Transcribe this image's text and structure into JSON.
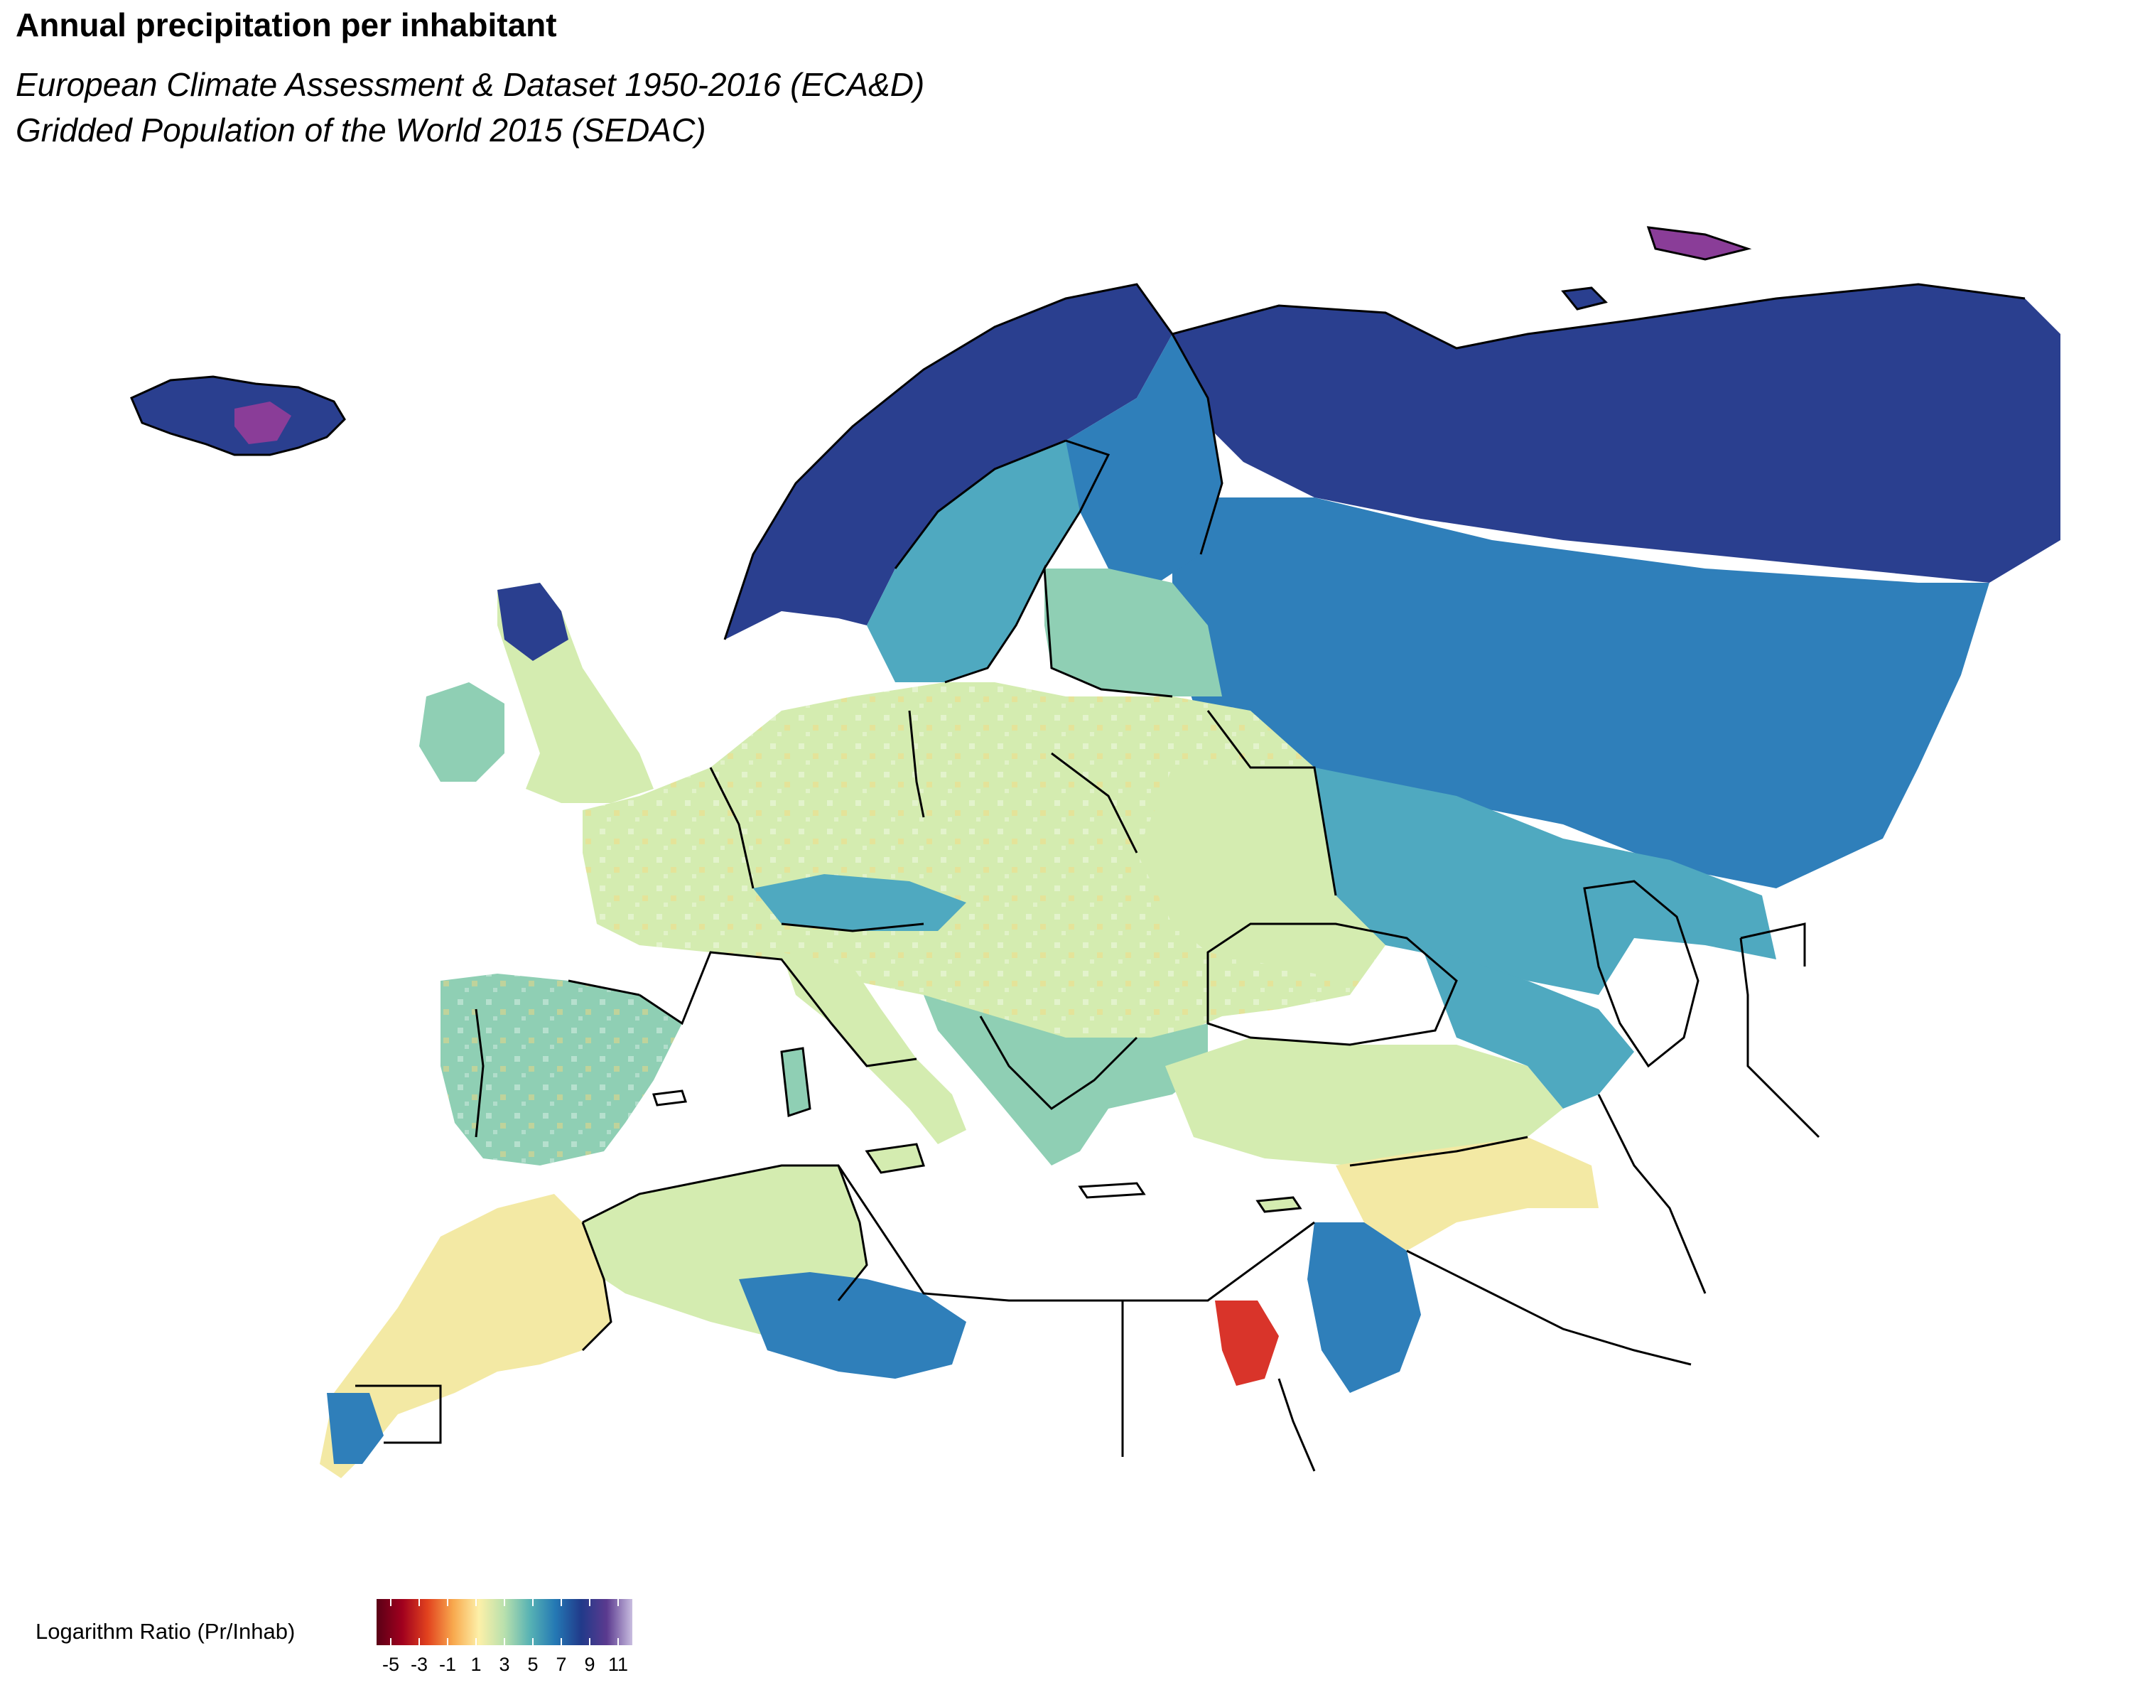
{
  "title": "Annual precipitation per inhabitant",
  "subtitle_lines": [
    "European Climate Assessment & Dataset 1950-2016 (ECA&D)",
    "Gridded Population of the World 2015 (SEDAC)"
  ],
  "legend": {
    "label": "Logarithm Ratio (Pr/Inhab)",
    "range": [
      -6,
      12
    ],
    "ticks": [
      -5,
      -3,
      -1,
      1,
      3,
      5,
      7,
      9,
      11
    ],
    "tick_labels": [
      "-5",
      "-3",
      "-1",
      "1",
      "3",
      "5",
      "7",
      "9",
      "11"
    ],
    "colors": [
      "#5a0016",
      "#a0001e",
      "#e2431e",
      "#f8a94e",
      "#fdf0a8",
      "#b8e0ad",
      "#57b2b4",
      "#2478b4",
      "#213a8a",
      "#5b3a8f",
      "#c9bde0"
    ]
  },
  "map": {
    "type": "choropleth-raster",
    "colors": {
      "border": "#000000",
      "sea": "#ffffff",
      "very_high": "#2a3f8f",
      "high": "#2f7fba",
      "mid_high": "#4fa9c0",
      "mid": "#8fcfb4",
      "low_mid": "#d4ecb0",
      "low": "#f3e9a4",
      "very_low": "#f9a44c",
      "lowest": "#d9342a",
      "max": "#8a3d98"
    }
  }
}
